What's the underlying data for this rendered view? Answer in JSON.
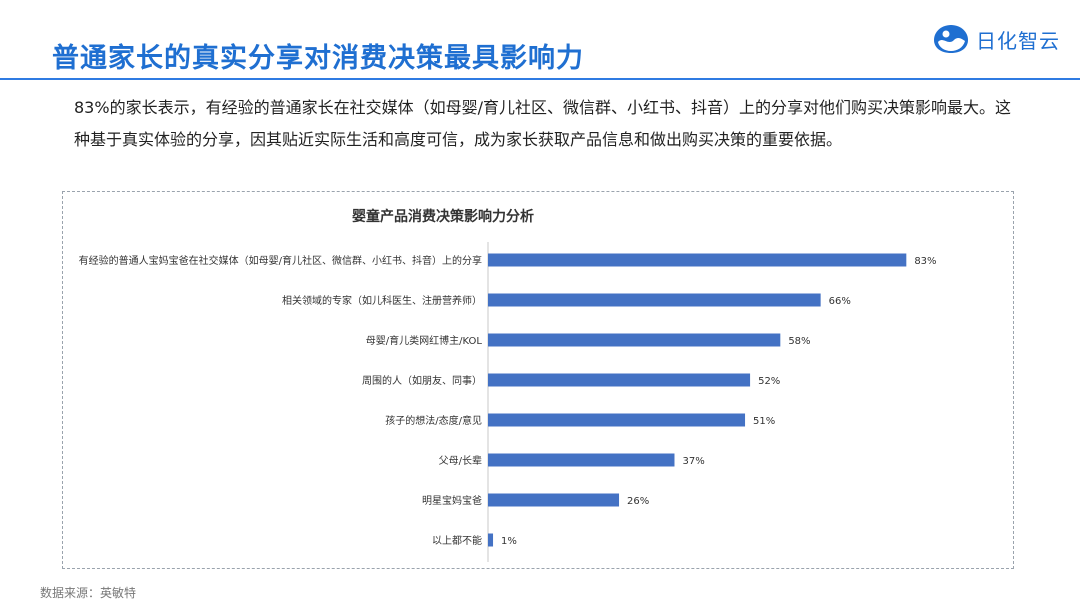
{
  "header": {
    "title": "普通家长的真实分享对消费决策最具影响力",
    "logo_text": "日化智云"
  },
  "intro_text": "83%的家长表示，有经验的普通家长在社交媒体（如母婴/育儿社区、微信群、小红书、抖音）上的分享对他们购买决策影响最大。这种基于真实体验的分享，因其贴近实际生活和高度可信，成为家长获取产品信息和做出购买决策的重要依据。",
  "footer": {
    "source": "数据来源：英敏特"
  },
  "colors": {
    "accent": "#1f6fd1",
    "bar": "#4472c4",
    "rule": "#2f7be2"
  },
  "icons": {
    "logo": "cloud-wave-icon"
  },
  "chart_data": {
    "type": "bar",
    "orientation": "horizontal",
    "title": "婴童产品消费决策影响力分析",
    "categories": [
      "有经验的普通人宝妈宝爸在社交媒体（如母婴/育儿社区、微信群、小红书、抖音）上的分享",
      "相关领域的专家（如儿科医生、注册营养师）",
      "母婴/育儿类网红博主/KOL",
      "周围的人（如朋友、同事）",
      "孩子的想法/态度/意见",
      "父母/长辈",
      "明星宝妈宝爸",
      "以上都不能"
    ],
    "values": [
      83,
      66,
      58,
      52,
      51,
      37,
      26,
      1
    ],
    "value_labels": [
      "83%",
      "66%",
      "58%",
      "52%",
      "51%",
      "37%",
      "26%",
      "1%"
    ],
    "unit": "%",
    "xlim": [
      0,
      100
    ],
    "grid": false,
    "legend": "none"
  }
}
